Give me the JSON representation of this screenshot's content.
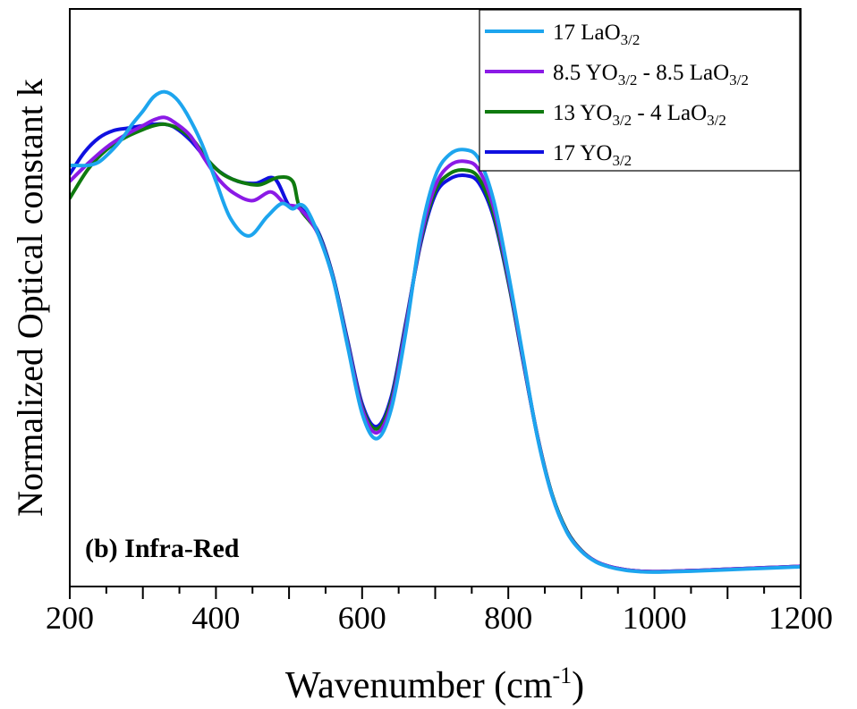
{
  "chart_data": {
    "type": "line",
    "panel_label": "(b) Infra-Red",
    "xlabel": "Wavenumber",
    "xlabel_unit": {
      "base": "(cm",
      "sup": "-1",
      "close": ")"
    },
    "ylabel": "Normalized Optical constant k",
    "xlim": [
      200,
      1200
    ],
    "ylim": [
      0,
      1
    ],
    "x_ticks": [
      200,
      400,
      600,
      800,
      1000,
      1200
    ],
    "x_tick_labels": [
      "200",
      "400",
      "600",
      "800",
      "1000",
      "1200"
    ],
    "y_tick_labels": [],
    "grid": false,
    "legend_position": "top-right",
    "series": [
      {
        "name": "17 LaO3/2",
        "label_parts": [
          {
            "t": "17 LaO"
          },
          {
            "t": "3/2",
            "sub": true
          }
        ],
        "color": "#1da5ee",
        "x": [
          200,
          225,
          240,
          255,
          270,
          285,
          300,
          315,
          330,
          345,
          360,
          380,
          400,
          420,
          445,
          470,
          490,
          505,
          515,
          525,
          540,
          560,
          580,
          600,
          620,
          640,
          660,
          680,
          700,
          720,
          742,
          760,
          780,
          800,
          820,
          840,
          860,
          880,
          900,
          920,
          940,
          960,
          980,
          1000,
          1050,
          1100,
          1150,
          1200
        ],
        "y": [
          0.843,
          0.843,
          0.85,
          0.87,
          0.895,
          0.927,
          0.955,
          0.985,
          0.995,
          0.982,
          0.95,
          0.89,
          0.81,
          0.733,
          0.697,
          0.737,
          0.764,
          0.753,
          0.762,
          0.75,
          0.7,
          0.61,
          0.47,
          0.33,
          0.278,
          0.34,
          0.5,
          0.7,
          0.82,
          0.866,
          0.875,
          0.855,
          0.77,
          0.62,
          0.45,
          0.28,
          0.16,
          0.085,
          0.045,
          0.023,
          0.012,
          0.006,
          0.003,
          0.002,
          0.004,
          0.007,
          0.01,
          0.013
        ]
      },
      {
        "name": "8.5 YO3/2 - 8.5 LaO3/2",
        "label_parts": [
          {
            "t": "8.5 YO"
          },
          {
            "t": "3/2",
            "sub": true
          },
          {
            "t": " - 8.5 LaO"
          },
          {
            "t": "3/2",
            "sub": true
          }
        ],
        "color": "#8b1ae6",
        "x": [
          200,
          225,
          250,
          275,
          300,
          315,
          330,
          345,
          365,
          385,
          405,
          425,
          450,
          475,
          495,
          515,
          540,
          560,
          580,
          600,
          620,
          640,
          660,
          680,
          700,
          720,
          742,
          760,
          780,
          800,
          820,
          840,
          860,
          880,
          900,
          920,
          940,
          960,
          980,
          1000,
          1050,
          1100,
          1150,
          1200
        ],
        "y": [
          0.81,
          0.847,
          0.88,
          0.905,
          0.925,
          0.937,
          0.942,
          0.93,
          0.904,
          0.855,
          0.812,
          0.785,
          0.77,
          0.788,
          0.763,
          0.753,
          0.7,
          0.61,
          0.475,
          0.34,
          0.29,
          0.35,
          0.51,
          0.69,
          0.8,
          0.843,
          0.851,
          0.833,
          0.755,
          0.612,
          0.445,
          0.282,
          0.16,
          0.086,
          0.046,
          0.024,
          0.013,
          0.007,
          0.004,
          0.003,
          0.005,
          0.008,
          0.011,
          0.014
        ]
      },
      {
        "name": "13 YO3/2 - 4 LaO3/2",
        "label_parts": [
          {
            "t": "13 YO"
          },
          {
            "t": "3/2",
            "sub": true
          },
          {
            "t": " - 4 LaO"
          },
          {
            "t": "3/2",
            "sub": true
          }
        ],
        "color": "#0f7a0f",
        "x": [
          200,
          225,
          250,
          275,
          300,
          315,
          330,
          350,
          370,
          390,
          410,
          435,
          460,
          485,
          505,
          515,
          540,
          560,
          580,
          600,
          620,
          640,
          660,
          680,
          700,
          720,
          742,
          760,
          780,
          800,
          820,
          840,
          860,
          880,
          900,
          920,
          940,
          960,
          980,
          1000,
          1050,
          1100,
          1150,
          1200
        ],
        "y": [
          0.775,
          0.835,
          0.875,
          0.9,
          0.917,
          0.925,
          0.928,
          0.918,
          0.893,
          0.852,
          0.824,
          0.808,
          0.803,
          0.818,
          0.81,
          0.754,
          0.702,
          0.612,
          0.478,
          0.344,
          0.298,
          0.358,
          0.515,
          0.685,
          0.79,
          0.826,
          0.833,
          0.816,
          0.742,
          0.605,
          0.442,
          0.283,
          0.162,
          0.088,
          0.047,
          0.024,
          0.013,
          0.007,
          0.004,
          0.003,
          0.005,
          0.008,
          0.011,
          0.014
        ]
      },
      {
        "name": "17 YO3/2",
        "label_parts": [
          {
            "t": "17 YO"
          },
          {
            "t": "3/2",
            "sub": true
          }
        ],
        "color": "#1010e0",
        "x": [
          200,
          220,
          240,
          260,
          280,
          300,
          315,
          330,
          345,
          365,
          385,
          405,
          430,
          455,
          480,
          500,
          515,
          540,
          560,
          580,
          600,
          620,
          640,
          660,
          680,
          700,
          720,
          742,
          760,
          780,
          800,
          820,
          840,
          860,
          880,
          900,
          920,
          940,
          960,
          980,
          1000,
          1050,
          1100,
          1150,
          1200
        ],
        "y": [
          0.825,
          0.87,
          0.9,
          0.915,
          0.92,
          0.925,
          0.928,
          0.928,
          0.92,
          0.895,
          0.86,
          0.83,
          0.81,
          0.806,
          0.816,
          0.76,
          0.756,
          0.705,
          0.615,
          0.482,
          0.35,
          0.303,
          0.365,
          0.52,
          0.68,
          0.782,
          0.815,
          0.822,
          0.806,
          0.735,
          0.602,
          0.44,
          0.282,
          0.162,
          0.088,
          0.047,
          0.024,
          0.013,
          0.007,
          0.004,
          0.003,
          0.005,
          0.008,
          0.011,
          0.014
        ]
      }
    ]
  }
}
